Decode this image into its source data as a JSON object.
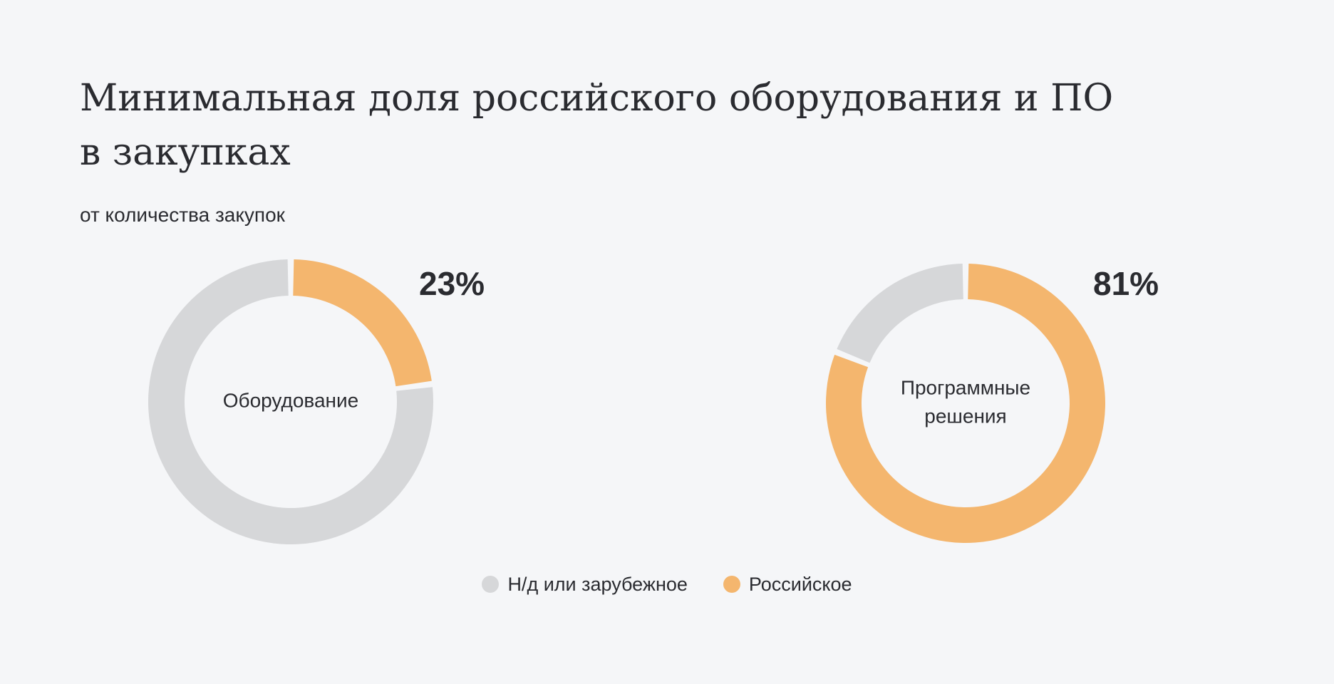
{
  "chart_data": {
    "type": "pie",
    "title": "Минимальная доля российского оборудования и ПО в закупках",
    "title_lines": [
      "Минимальная доля российского оборудования и ПО",
      "в закупках"
    ],
    "subtitle": "от количества закупок",
    "legend_position": "bottom-center",
    "legend": [
      {
        "key": "foreign",
        "label": "Н/д или зарубежное",
        "color": "#d6d7d9"
      },
      {
        "key": "russian",
        "label": "Российское",
        "color": "#f4b66e"
      }
    ],
    "charts": [
      {
        "label_lines": [
          "Оборудование"
        ],
        "values": {
          "russian": 23,
          "foreign": 77
        },
        "value_label": "23%"
      },
      {
        "label_lines": [
          "Программные",
          "решения"
        ],
        "values": {
          "russian": 81,
          "foreign": 19
        },
        "value_label": "81%"
      }
    ]
  }
}
